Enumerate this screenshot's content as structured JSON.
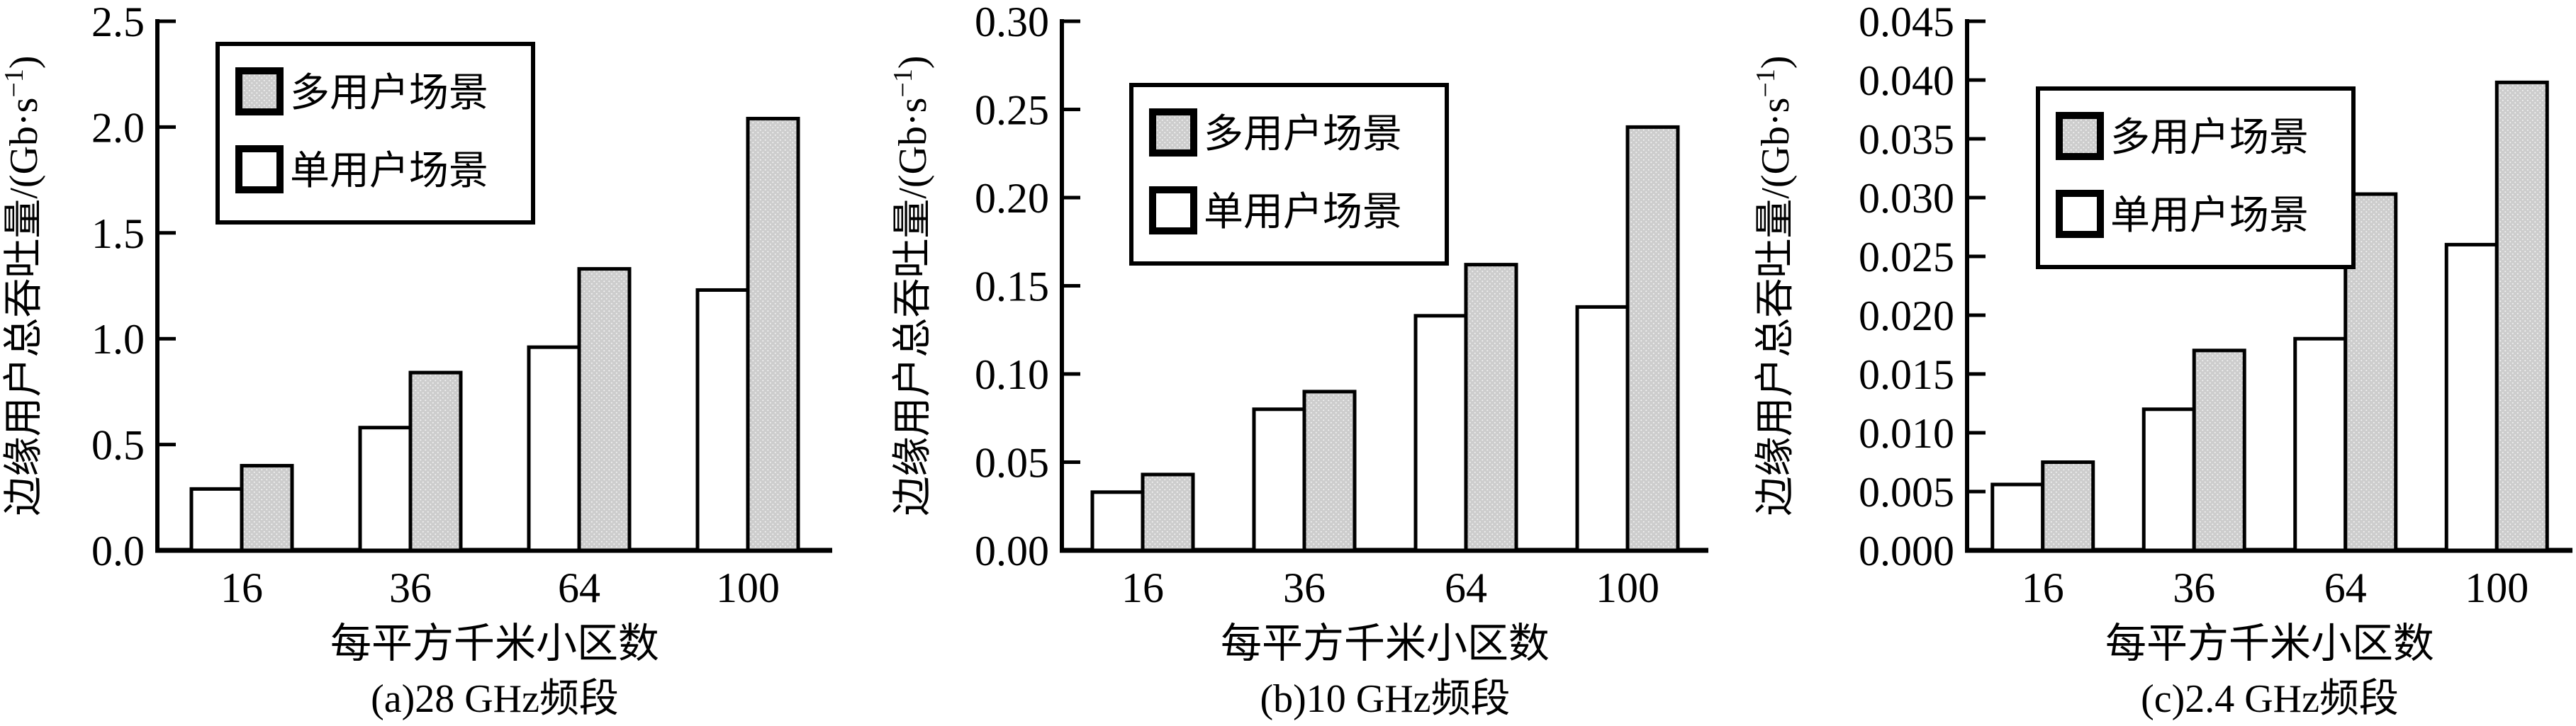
{
  "figure": {
    "background": "#ffffff",
    "axis_color": "#000000",
    "bar_outline_color": "#000000"
  },
  "chart_data": [
    {
      "type": "bar",
      "subtitle": "(a)28 GHz频段",
      "xlabel": "每平方千米小区数",
      "ylabel": "边缘用户总吞吐量/(Gb·s⁻¹)",
      "ylabel_parts": {
        "main": "边缘用户总吞吐量/(Gb·s",
        "sup": "−1",
        "close": ")"
      },
      "categories": [
        "16",
        "36",
        "64",
        "100"
      ],
      "series": [
        {
          "name": "多用户场景",
          "fill": "#cdcdcd",
          "texture": "stipple",
          "values": [
            0.4,
            0.84,
            1.33,
            2.04
          ]
        },
        {
          "name": "单用户场景",
          "fill": "#ffffff",
          "texture": "none",
          "values": [
            0.29,
            0.58,
            0.96,
            1.23
          ]
        }
      ],
      "ylim": [
        0,
        2.5
      ],
      "ytick_step": 0.5,
      "tick_decimals": 1,
      "grid": false,
      "legend_position": "top-left"
    },
    {
      "type": "bar",
      "subtitle": "(b)10 GHz频段",
      "xlabel": "每平方千米小区数",
      "ylabel": "边缘用户总吞吐量/(Gb·s⁻¹)",
      "ylabel_parts": {
        "main": "边缘用户总吞吐量/(Gb·s",
        "sup": "−1",
        "close": ")"
      },
      "categories": [
        "16",
        "36",
        "64",
        "100"
      ],
      "series": [
        {
          "name": "多用户场景",
          "fill": "#cdcdcd",
          "texture": "stipple",
          "values": [
            0.043,
            0.09,
            0.162,
            0.24
          ]
        },
        {
          "name": "单用户场景",
          "fill": "#ffffff",
          "texture": "none",
          "values": [
            0.033,
            0.08,
            0.133,
            0.138
          ]
        }
      ],
      "ylim": [
        0,
        0.3
      ],
      "ytick_step": 0.05,
      "tick_decimals": 2,
      "grid": false,
      "legend_position": "top-left"
    },
    {
      "type": "bar",
      "subtitle": "(c)2.4 GHz频段",
      "xlabel": "每平方千米小区数",
      "ylabel": "边缘用户总吞吐量/(Gb·s⁻¹)",
      "ylabel_parts": {
        "main": "边缘用户总吞吐量/(Gb·s",
        "sup": "−1",
        "close": ")"
      },
      "categories": [
        "16",
        "36",
        "64",
        "100"
      ],
      "series": [
        {
          "name": "多用户场景",
          "fill": "#cdcdcd",
          "texture": "stipple",
          "values": [
            0.0075,
            0.017,
            0.0303,
            0.0398
          ]
        },
        {
          "name": "单用户场景",
          "fill": "#ffffff",
          "texture": "none",
          "values": [
            0.0056,
            0.012,
            0.018,
            0.026
          ]
        }
      ],
      "ylim": [
        0,
        0.045
      ],
      "ytick_step": 0.005,
      "tick_decimals": 3,
      "grid": false,
      "legend_position": "top-left"
    }
  ]
}
